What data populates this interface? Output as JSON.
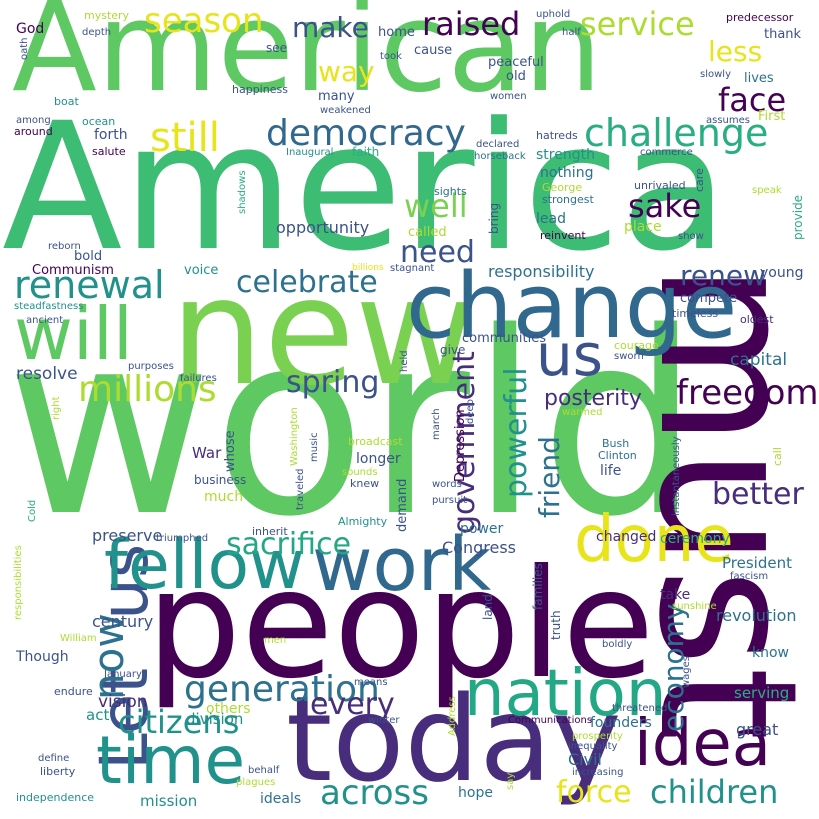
{
  "palette": {
    "deep_purple": "#440154",
    "indigo": "#472d7b",
    "slate_blue": "#3b528b",
    "steel_blue": "#2c728e",
    "teal": "#21918c",
    "sea_green": "#28ae80",
    "green": "#5ec962",
    "lime": "#addc30",
    "yellow": "#e7e419",
    "background": "#ffffff"
  },
  "words": {
    "american": "American",
    "america": "America",
    "world": "world",
    "new": "new",
    "must": "must",
    "people": "people",
    "today": "today",
    "change": "change",
    "let": "Let",
    "us_big": "us",
    "us_mid": "us",
    "fellow": "fellow",
    "work": "work",
    "time": "time",
    "nation": "nation",
    "idea": "idea",
    "done": "done",
    "will": "will",
    "renewal": "renewal",
    "challenge": "challenge",
    "democracy": "democracy",
    "millions": "millions",
    "now": "now",
    "generation": "generation",
    "freedom": "freedom",
    "season": "season",
    "raised": "raised",
    "service": "service",
    "still": "still",
    "celebrate": "celebrate",
    "sacrifice": "sacrifice",
    "across": "across",
    "children": "children",
    "citizens": "citizens",
    "government": "government",
    "powerful": "powerful",
    "economy": "economy",
    "friend": "friend",
    "better": "better",
    "force": "force",
    "every": "every",
    "spring": "spring",
    "need": "need",
    "make": "make",
    "face": "face",
    "sake": "sake",
    "well": "well",
    "way": "way",
    "less": "less",
    "renew": "renew",
    "posterity": "posterity",
    "responsibility": "responsibility",
    "opportunity": "opportunity",
    "Congress": "Congress",
    "capital": "capital",
    "resolve": "resolve",
    "preserve": "preserve",
    "century": "century",
    "vision": "vision",
    "act": "act",
    "division": "division",
    "others": "others",
    "mission": "mission",
    "ideals": "ideals",
    "hope": "hope",
    "Civil": "Civil",
    "great": "great",
    "founders": "founders",
    "revolution": "revolution",
    "serving": "serving",
    "know": "know",
    "President": "President",
    "take": "take",
    "changed": "changed",
    "ceremony": "ceremony",
    "power": "power",
    "demand": "demand",
    "longer": "longer",
    "life": "life",
    "whose": "whose",
    "War": "War",
    "much": "much",
    "business": "business",
    "Depression": "Depression",
    "young": "young",
    "compete": "compete",
    "oldest": "oldest",
    "timeless": "timeless",
    "courage": "courage",
    "sworn": "sworn",
    "communities": "communities",
    "give": "give",
    "truth": "truth",
    "families": "families",
    "land": "land",
    "Though": "Though",
    "January": "January",
    "Communism": "Communism",
    "bold": "bold",
    "voice": "voice",
    "called": "called",
    "lead": "lead",
    "bring": "bring",
    "reinvent": "reinvent",
    "place": "place",
    "show": "show",
    "provide": "provide",
    "speak": "speak",
    "care": "care",
    "unrivaled": "unrivaled",
    "strongest": "strongest",
    "George": "George",
    "nothing": "nothing",
    "strength": "strength",
    "sights": "sights",
    "horseback": "horseback",
    "hatreds": "hatreds",
    "declared": "declared",
    "faith": "faith",
    "Inaugural": "Inaugural",
    "First": "First",
    "assumes": "assumes",
    "commerce": "commerce",
    "lives": "lives",
    "slowly": "slowly",
    "thank": "thank",
    "predecessor": "predecessor",
    "uphold": "uphold",
    "half": "half",
    "took": "took",
    "home": "home",
    "cause": "cause",
    "see": "see",
    "peaceful": "peaceful",
    "old": "old",
    "women": "women",
    "many": "many",
    "weakened": "weakened",
    "happiness": "happiness",
    "forth": "forth",
    "salute": "salute",
    "ocean": "ocean",
    "boat": "boat",
    "among": "among",
    "around": "around",
    "God": "God",
    "oath": "oath",
    "depth": "depth",
    "mystery": "mystery",
    "shadows": "shadows",
    "reborn": "reborn",
    "steadfastness": "steadfastness",
    "ancient": "ancient",
    "billions": "billions",
    "stagnant": "stagnant",
    "purposes": "purposes",
    "failures": "failures",
    "right": "right",
    "held": "held",
    "Washington": "Washington",
    "music": "music",
    "traveled": "traveled",
    "broadcast": "broadcast",
    "sounds": "sounds",
    "knew": "knew",
    "words": "words",
    "pursuit": "pursuit",
    "march": "march",
    "deep": "deep",
    "warmed": "warmed",
    "Bush": "Bush",
    "Clinton": "Clinton",
    "instantaneously": "instantaneously",
    "call": "call",
    "Cold": "Cold",
    "responsibilities": "responsibilities",
    "William": "William",
    "inherit": "inherit",
    "triumphed": "triumphed",
    "Almighty": "Almighty",
    "means": "means",
    "men": "men",
    "endure": "endure",
    "winter": "winter",
    "Address": "Address",
    "Communications": "Communications",
    "prosperity": "prosperity",
    "inequality": "inequality",
    "increasing": "increasing",
    "threatened": "threatened",
    "fascism": "fascism",
    "sunshine": "sunshine",
    "wages": "wages",
    "boldly": "boldly",
    "behalf": "behalf",
    "plagues": "plagues",
    "say": "say",
    "define": "define",
    "liberty": "liberty",
    "independence": "independence"
  }
}
